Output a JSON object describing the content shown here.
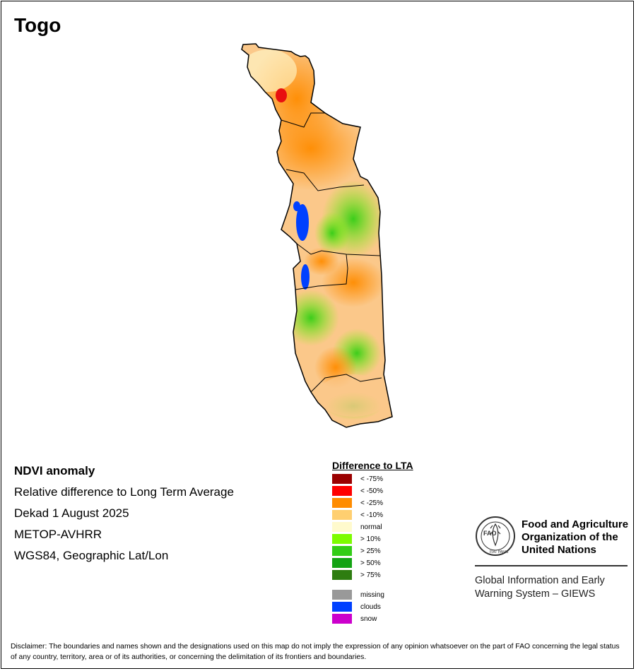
{
  "map": {
    "title": "Togo",
    "info": {
      "product": "NDVI anomaly",
      "description": "Relative difference to Long Term Average",
      "period": "Dekad 1 August 2025",
      "sensor": "METOP-AVHRR",
      "projection": "WGS84, Geographic Lat/Lon"
    }
  },
  "legend": {
    "title": "Difference to LTA",
    "classes": [
      {
        "label": "< -75%",
        "color": "#9b0000"
      },
      {
        "label": "< -50%",
        "color": "#ff0000"
      },
      {
        "label": "< -25%",
        "color": "#ff8c00"
      },
      {
        "label": "< -10%",
        "color": "#ffcf70"
      },
      {
        "label": "normal",
        "color": "#fffacd"
      },
      {
        "label": "> 10%",
        "color": "#7cfc00"
      },
      {
        "label": "> 25%",
        "color": "#32cd16"
      },
      {
        "label": "> 50%",
        "color": "#13a313"
      },
      {
        "label": "> 75%",
        "color": "#2e7d10"
      }
    ],
    "special": [
      {
        "label": "missing",
        "color": "#999999"
      },
      {
        "label": "clouds",
        "color": "#0040ff"
      },
      {
        "label": "snow",
        "color": "#cc00cc"
      }
    ]
  },
  "org": {
    "logo_text": "FAO",
    "logo_motto": "FIAT PANIS",
    "name_line1": "Food and Agriculture",
    "name_line2": "Organization of the",
    "name_line3": "United Nations",
    "giews_line1": "Global Information and Early",
    "giews_line2": "Warning System – GIEWS"
  },
  "disclaimer": "Disclaimer: The boundaries and names shown and the designations used on this map do not imply the expression of any opinion whatsoever on the part of FAO concerning the legal status of any country, territory, area or of its authorities, or concerning the delimitation of its frontiers and boundaries."
}
